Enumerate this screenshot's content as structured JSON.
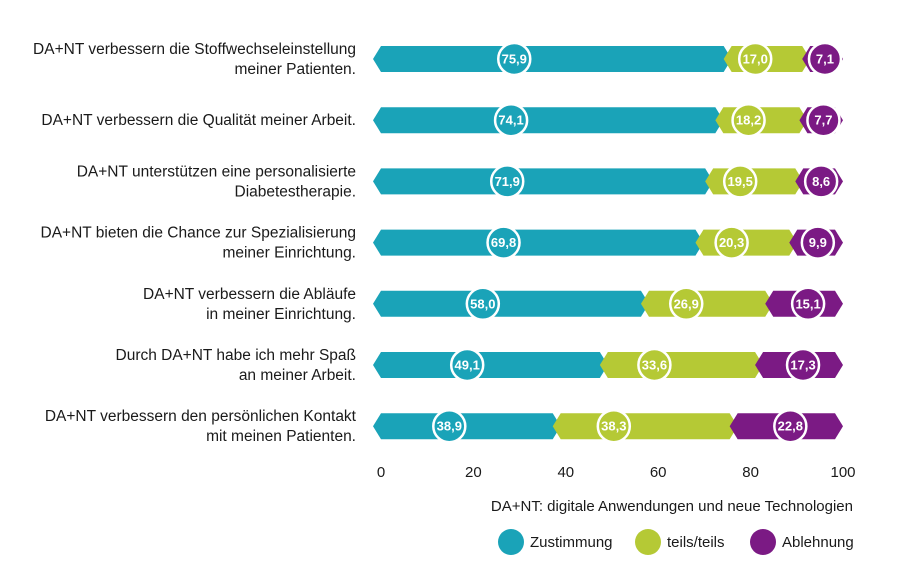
{
  "chart_data": {
    "type": "bar",
    "orientation": "horizontal",
    "stacked": true,
    "categories": [
      [
        "DA+NT verbessern die Stoffwechseleinstellung",
        "meiner Patienten."
      ],
      [
        "DA+NT verbessern die Qualität meiner Arbeit."
      ],
      [
        "DA+NT unterstützen eine personalisierte",
        "Diabetestherapie."
      ],
      [
        "DA+NT bieten die Chance zur Spezialisierung",
        "meiner Einrichtung."
      ],
      [
        "DA+NT verbessern die Abläufe",
        "in meiner Einrichtung."
      ],
      [
        "Durch DA+NT habe ich mehr Spaß",
        "an meiner Arbeit."
      ],
      [
        "DA+NT verbessern den persönlichen Kontakt",
        "mit meinen Patienten."
      ]
    ],
    "series": [
      {
        "name": "Zustimmung",
        "color": "#1aa3b8",
        "values": [
          75.9,
          74.1,
          71.9,
          69.8,
          58.0,
          49.1,
          38.9
        ],
        "labels": [
          "75,9",
          "74,1",
          "71,9",
          "69,8",
          "58,0",
          "49,1",
          "38,9"
        ]
      },
      {
        "name": "teils/teils",
        "color": "#b5c935",
        "values": [
          17.0,
          18.2,
          19.5,
          20.3,
          26.9,
          33.6,
          38.3
        ],
        "labels": [
          "17,0",
          "18,2",
          "19,5",
          "20,3",
          "26,9",
          "33,6",
          "38,3"
        ]
      },
      {
        "name": "Ablehnung",
        "color": "#7b1a84",
        "values": [
          7.1,
          7.7,
          8.6,
          9.9,
          15.1,
          17.3,
          22.8
        ],
        "labels": [
          "7,1",
          "7,7",
          "8,6",
          "9,9",
          "15,1",
          "17,3",
          "22,8"
        ]
      }
    ],
    "xlim": [
      0,
      100
    ],
    "xticks": [
      "0",
      "20",
      "40",
      "60",
      "80",
      "100"
    ],
    "grid": false,
    "footnote": "DA+NT: digitale Anwendungen und neue Technologien",
    "legend_position": "bottom-right"
  }
}
